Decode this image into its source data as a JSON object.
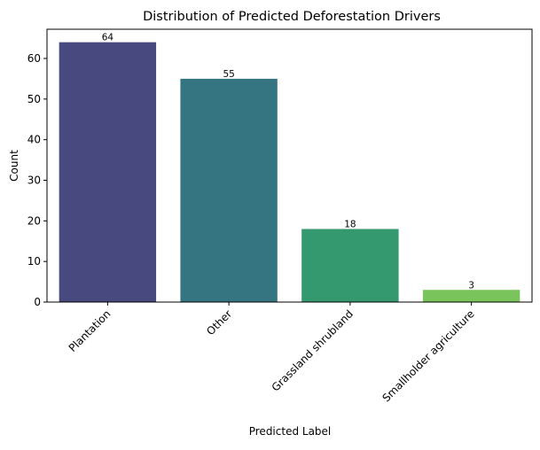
{
  "chart_data": {
    "type": "bar",
    "title": "Distribution of Predicted Deforestation Drivers",
    "xlabel": "Predicted Label",
    "ylabel": "Count",
    "categories": [
      "Plantation",
      "Other",
      "Grassland shrubland",
      "Smallholder agriculture"
    ],
    "values": [
      64,
      55,
      18,
      3
    ],
    "colors": [
      "#48497e",
      "#357481",
      "#35996f",
      "#79c45b"
    ],
    "ylim": [
      0,
      67.2
    ],
    "yticks": [
      0,
      10,
      20,
      30,
      40,
      50,
      60
    ],
    "grid": false,
    "legend": "none",
    "data_labels": true,
    "x_tick_rotation": 45
  }
}
